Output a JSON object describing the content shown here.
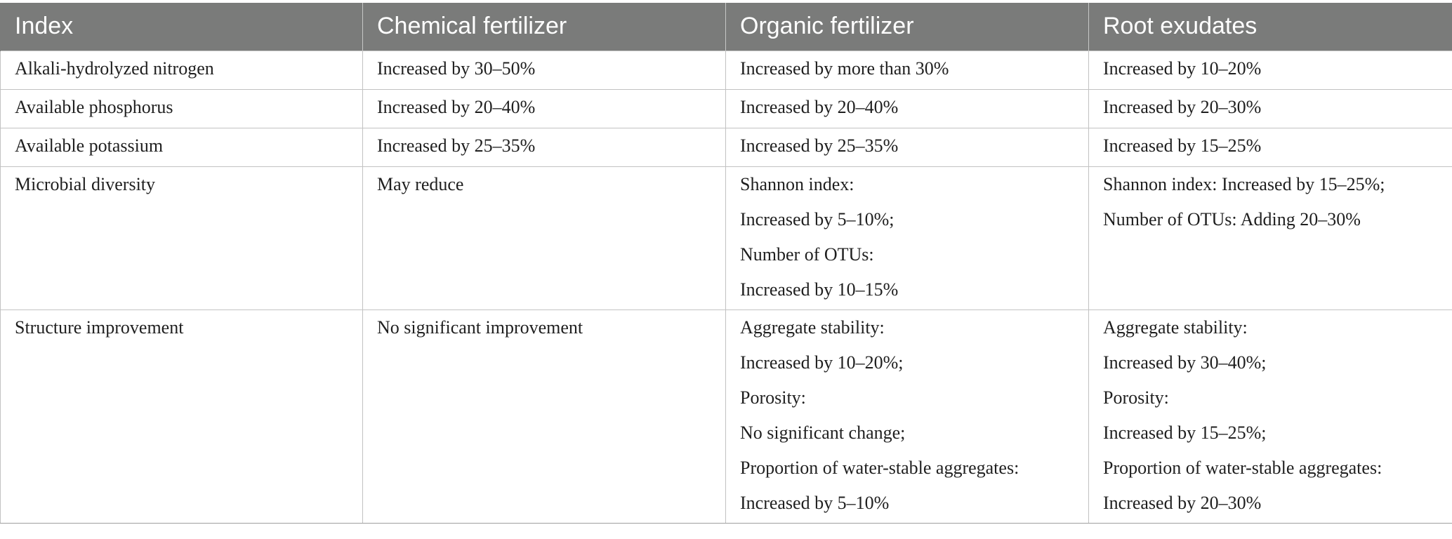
{
  "table": {
    "headers": [
      "Index",
      "Chemical fertilizer",
      "Organic fertilizer",
      "Root exudates"
    ],
    "rows": [
      {
        "index": "Alkali-hydrolyzed nitrogen",
        "chemical": [
          "Increased by 30–50%"
        ],
        "organic": [
          "Increased by more than 30%"
        ],
        "root": [
          "Increased by 10–20%"
        ]
      },
      {
        "index": "Available phosphorus",
        "chemical": [
          "Increased by 20–40%"
        ],
        "organic": [
          "Increased by 20–40%"
        ],
        "root": [
          "Increased by 20–30%"
        ]
      },
      {
        "index": "Available potassium",
        "chemical": [
          "Increased by 25–35%"
        ],
        "organic": [
          "Increased by 25–35%"
        ],
        "root": [
          "Increased by 15–25%"
        ]
      },
      {
        "index": "Microbial diversity",
        "chemical": [
          "May reduce"
        ],
        "organic": [
          "Shannon index:",
          "Increased by 5–10%;",
          "Number of OTUs:",
          "Increased by 10–15%"
        ],
        "root": [
          "Shannon index: Increased by 15–25%;",
          "Number of OTUs: Adding 20–30%"
        ]
      },
      {
        "index": "Structure improvement",
        "chemical": [
          "No significant improvement"
        ],
        "organic": [
          "Aggregate stability:",
          "Increased by 10–20%;",
          "Porosity:",
          "No significant change;",
          "Proportion of water-stable aggregates:",
          "Increased by 5–10%"
        ],
        "root": [
          "Aggregate stability:",
          "Increased by 30–40%;",
          "Porosity:",
          "Increased by 15–25%;",
          "Proportion of water-stable aggregates:",
          "Increased by 20–30%"
        ]
      }
    ]
  },
  "colors": {
    "header_bg": "#7a7b7a",
    "header_text": "#ffffff",
    "grid": "#c2c2c2"
  }
}
